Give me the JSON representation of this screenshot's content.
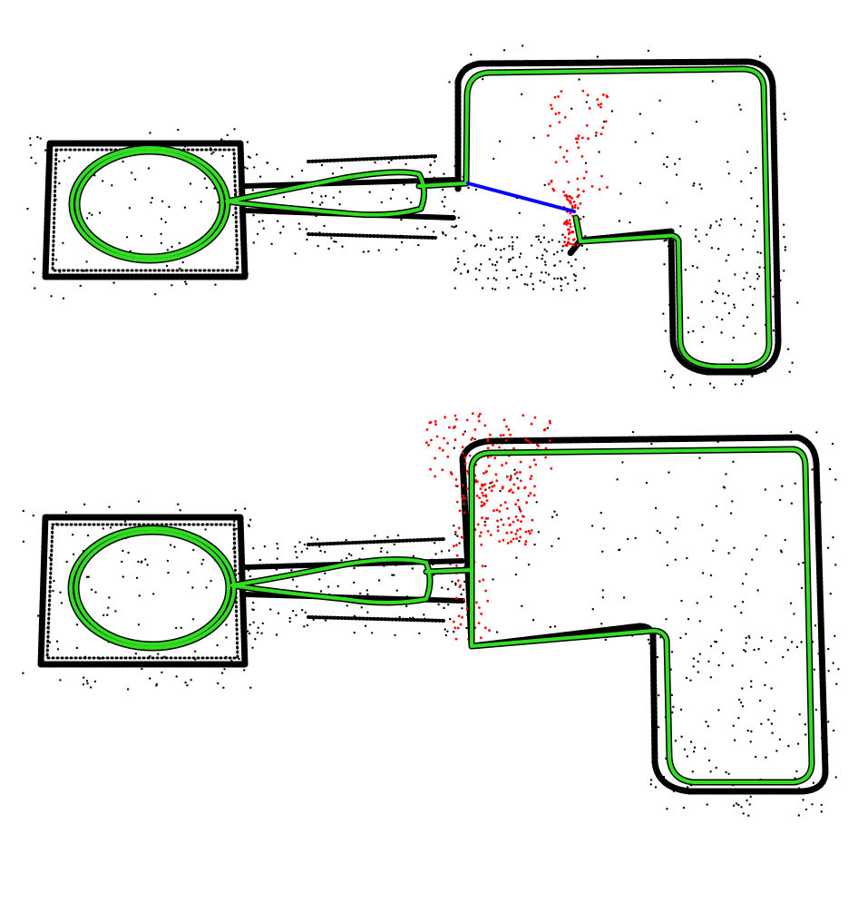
{
  "figure": {
    "panels": [
      {
        "panel": "top",
        "stage": "before-loop-closure",
        "loop_closure_link_shown": true
      },
      {
        "panel": "bottom",
        "stage": "after-loop-closure",
        "loop_closure_link_shown": false
      }
    ]
  },
  "colors": {
    "background": "#ffffff",
    "map_points": "#000000",
    "current_points": "#ff0000",
    "trajectory": "#33dd22",
    "trajectory_outline": "#000000",
    "loop_closure": "#0000ff"
  }
}
